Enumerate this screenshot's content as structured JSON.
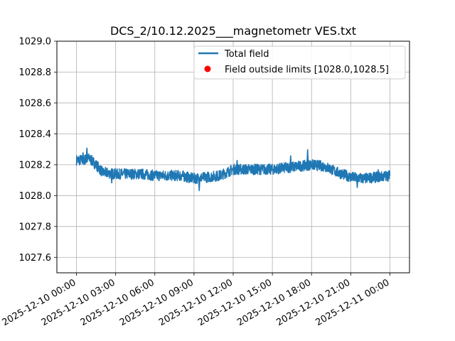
{
  "chart_data": {
    "type": "line",
    "title": "DCS_2/10.12.2025___magnetometr VES.txt",
    "xlabel": "",
    "ylabel": "",
    "x_ticks": [
      "2025-12-10 00:00",
      "2025-12-10 03:00",
      "2025-12-10 06:00",
      "2025-12-10 09:00",
      "2025-12-10 12:00",
      "2025-12-10 15:00",
      "2025-12-10 18:00",
      "2025-12-10 21:00",
      "2025-12-11 00:00"
    ],
    "y_ticks": [
      "1027.6",
      "1027.8",
      "1028.0",
      "1028.2",
      "1028.4",
      "1028.6",
      "1028.8",
      "1029.0"
    ],
    "xlim_hours": [
      -1.5,
      25.5
    ],
    "ylim": [
      1027.5,
      1029.0
    ],
    "grid": true,
    "legend_position": "top-right",
    "series": [
      {
        "name": "Total field",
        "color": "#1f77b4",
        "band_hours": [
          0,
          0.5,
          1,
          1.5,
          2,
          3,
          4,
          5,
          6,
          7,
          8,
          9,
          10,
          11,
          12,
          13,
          14,
          15,
          16,
          17,
          18,
          19,
          20,
          21,
          22,
          23,
          24
        ],
        "band_center": [
          1028.23,
          1028.23,
          1028.24,
          1028.2,
          1028.15,
          1028.14,
          1028.14,
          1028.14,
          1028.13,
          1028.13,
          1028.13,
          1028.11,
          1028.12,
          1028.13,
          1028.17,
          1028.17,
          1028.17,
          1028.17,
          1028.18,
          1028.19,
          1028.2,
          1028.19,
          1028.15,
          1028.12,
          1028.11,
          1028.12,
          1028.13
        ],
        "band_halfwidth": 0.035,
        "spikes": [
          [
            0.8,
            1028.31
          ],
          [
            0.5,
            1028.28
          ],
          [
            2.7,
            1028.08
          ],
          [
            9.4,
            1028.03
          ],
          [
            12.3,
            1028.23
          ],
          [
            17.7,
            1028.3
          ],
          [
            16.4,
            1028.26
          ],
          [
            21.5,
            1028.05
          ],
          [
            23.1,
            1028.17
          ]
        ]
      },
      {
        "name": "Field outside limits [1028.0,1028.5]",
        "color": "#ff0000",
        "marker": "o",
        "points": []
      }
    ]
  }
}
